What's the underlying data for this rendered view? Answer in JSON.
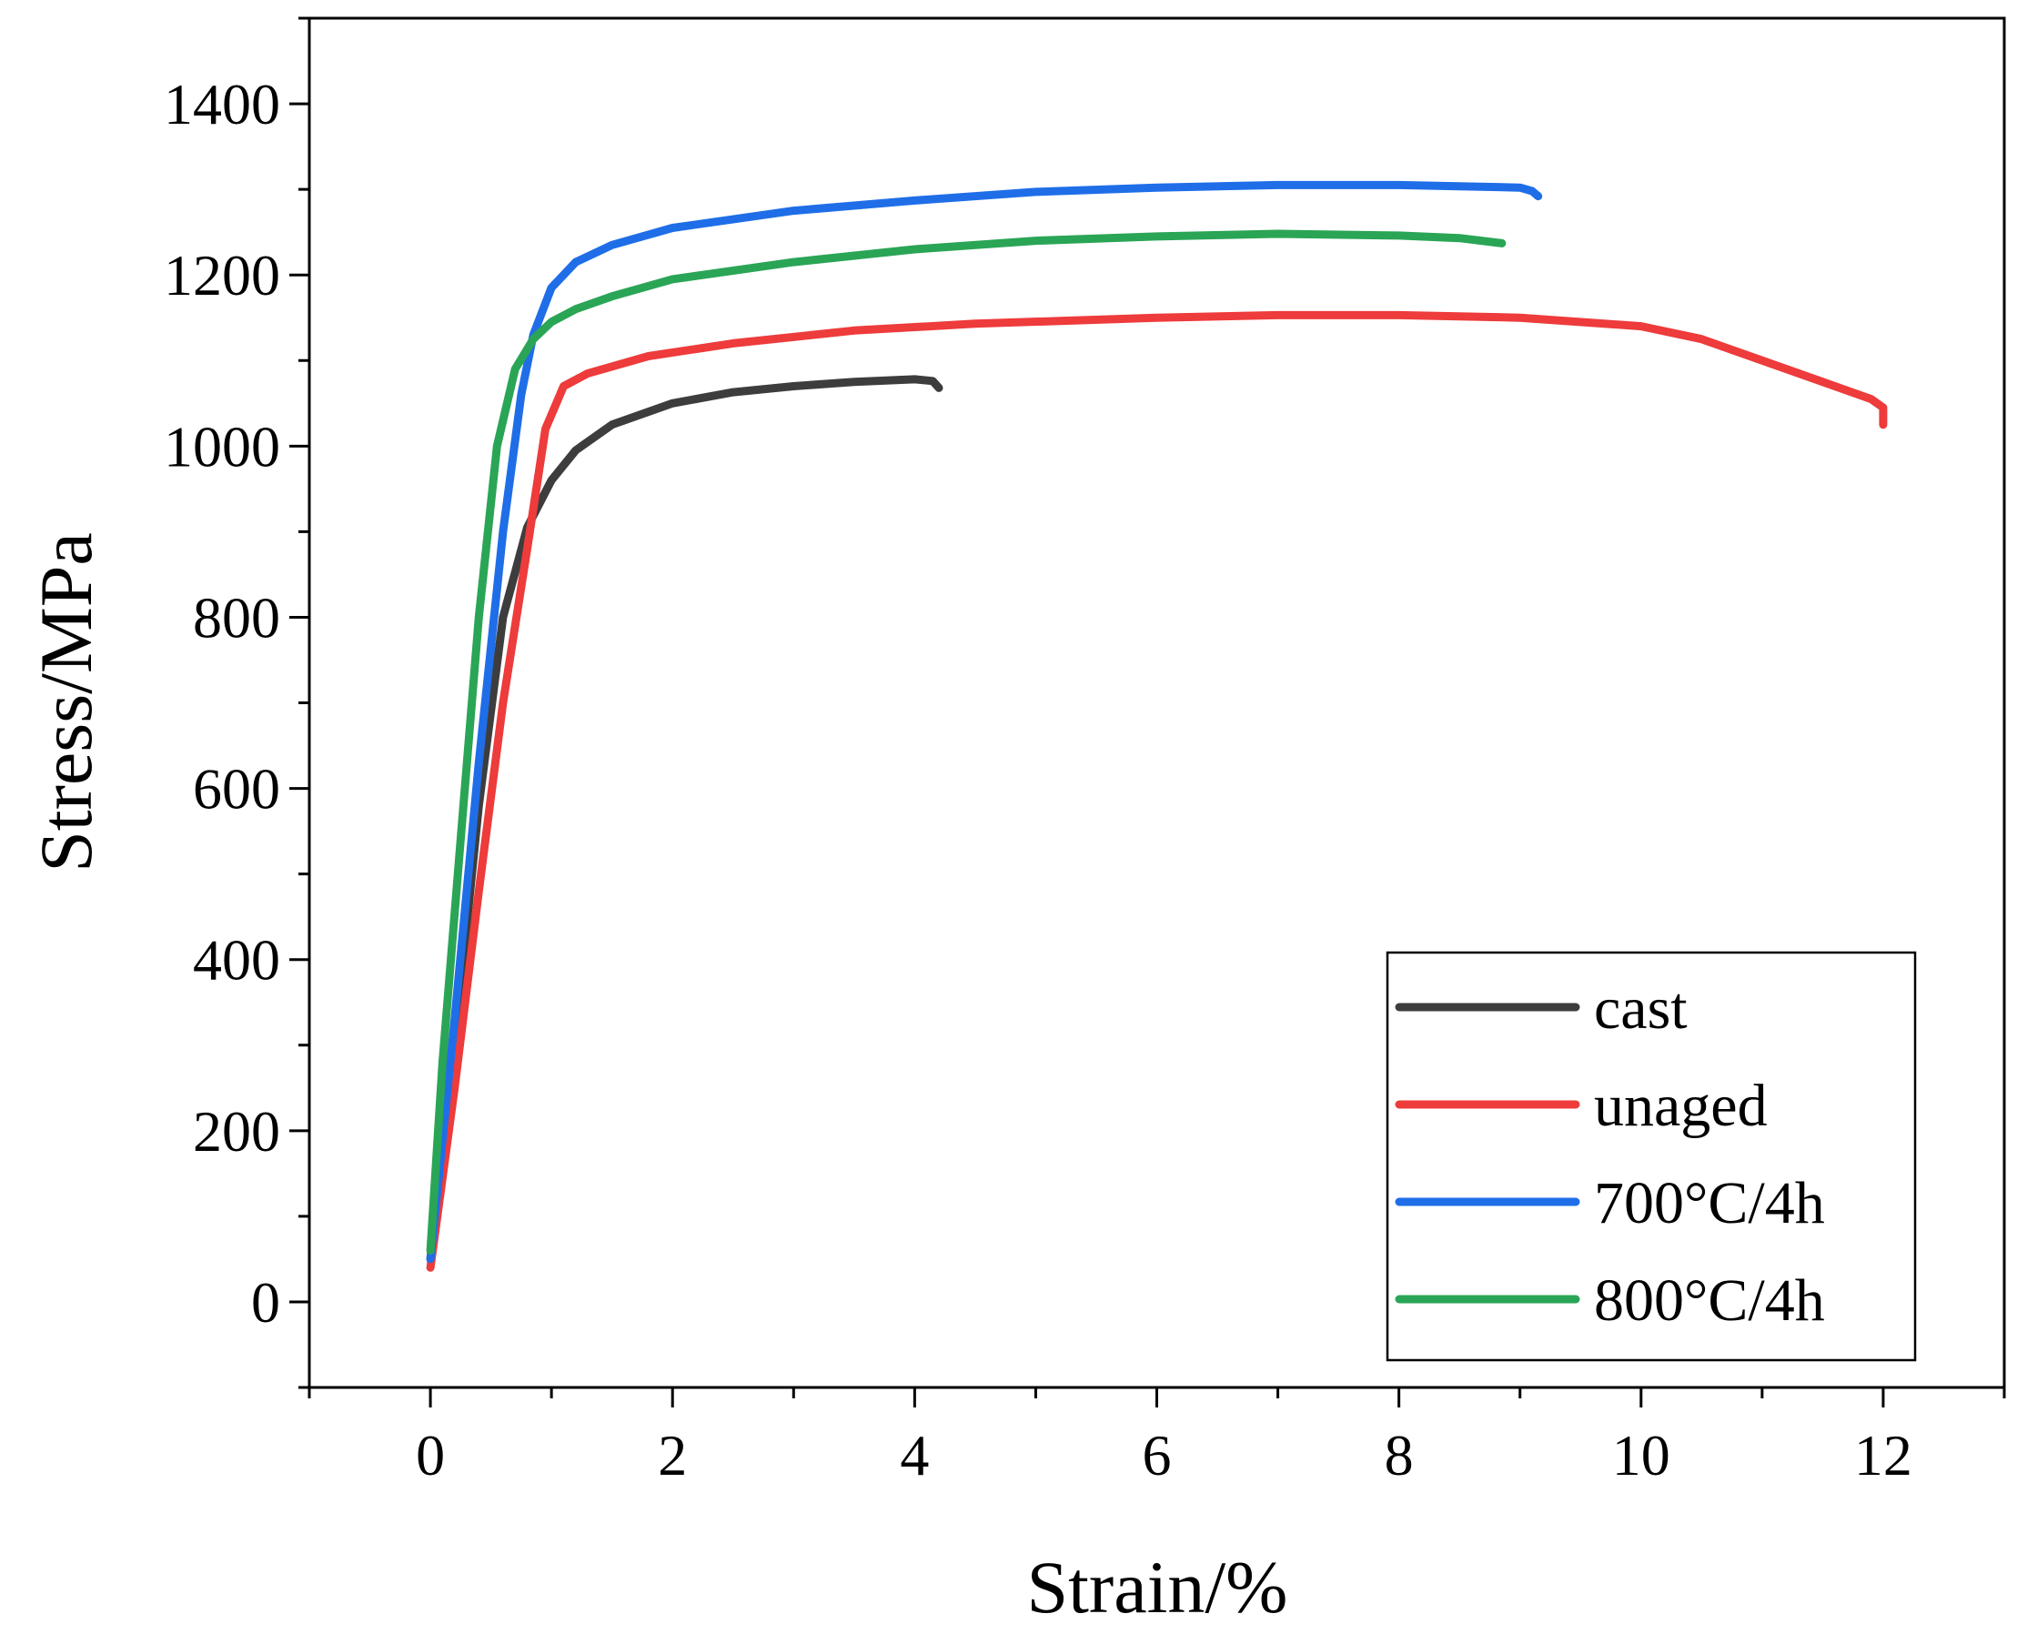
{
  "chart_data": {
    "type": "line",
    "title": "",
    "xlabel": "Strain/%",
    "ylabel": "Stress/MPa",
    "xlim": [
      -1,
      13
    ],
    "ylim": [
      -100,
      1500
    ],
    "x_ticks": [
      0,
      2,
      4,
      6,
      8,
      10,
      12
    ],
    "y_ticks": [
      0,
      200,
      400,
      600,
      800,
      1000,
      1200,
      1400
    ],
    "x_tick_labels": [
      "0",
      "2",
      "4",
      "6",
      "8",
      "10",
      "12"
    ],
    "y_tick_labels": [
      "0",
      "200",
      "400",
      "600",
      "800",
      "1000",
      "1200",
      "1400"
    ],
    "legend_position": "bottom-right",
    "grid": false,
    "series": [
      {
        "name": "cast",
        "color": "#3d3d3d",
        "points": [
          [
            0,
            50
          ],
          [
            0.2,
            300
          ],
          [
            0.4,
            580
          ],
          [
            0.6,
            800
          ],
          [
            0.8,
            905
          ],
          [
            1.0,
            960
          ],
          [
            1.2,
            995
          ],
          [
            1.5,
            1025
          ],
          [
            2.0,
            1050
          ],
          [
            2.5,
            1063
          ],
          [
            3.0,
            1070
          ],
          [
            3.5,
            1075
          ],
          [
            4.0,
            1078
          ],
          [
            4.15,
            1076
          ],
          [
            4.2,
            1068
          ]
        ]
      },
      {
        "name": "unaged",
        "color": "#ee3b3b",
        "points": [
          [
            0,
            40
          ],
          [
            0.2,
            250
          ],
          [
            0.4,
            480
          ],
          [
            0.6,
            700
          ],
          [
            0.8,
            880
          ],
          [
            0.95,
            1020
          ],
          [
            1.1,
            1070
          ],
          [
            1.3,
            1085
          ],
          [
            1.8,
            1105
          ],
          [
            2.5,
            1120
          ],
          [
            3.5,
            1135
          ],
          [
            4.5,
            1143
          ],
          [
            6.0,
            1150
          ],
          [
            7.0,
            1153
          ],
          [
            8.0,
            1153
          ],
          [
            9.0,
            1150
          ],
          [
            10.0,
            1140
          ],
          [
            10.5,
            1125
          ],
          [
            11.0,
            1100
          ],
          [
            11.5,
            1075
          ],
          [
            11.9,
            1055
          ],
          [
            12.0,
            1045
          ],
          [
            12.0,
            1025
          ]
        ]
      },
      {
        "name": "700°C/4h",
        "color": "#1f6ee8",
        "points": [
          [
            0,
            50
          ],
          [
            0.2,
            330
          ],
          [
            0.4,
            630
          ],
          [
            0.6,
            900
          ],
          [
            0.75,
            1060
          ],
          [
            0.85,
            1130
          ],
          [
            1.0,
            1185
          ],
          [
            1.2,
            1215
          ],
          [
            1.5,
            1235
          ],
          [
            2.0,
            1255
          ],
          [
            3.0,
            1275
          ],
          [
            4.0,
            1287
          ],
          [
            5.0,
            1297
          ],
          [
            6.0,
            1302
          ],
          [
            7.0,
            1305
          ],
          [
            8.0,
            1305
          ],
          [
            9.0,
            1302
          ],
          [
            9.1,
            1298
          ],
          [
            9.15,
            1292
          ]
        ]
      },
      {
        "name": "800°C/4h",
        "color": "#2aa556",
        "points": [
          [
            0,
            60
          ],
          [
            0.1,
            280
          ],
          [
            0.25,
            540
          ],
          [
            0.4,
            800
          ],
          [
            0.55,
            1000
          ],
          [
            0.7,
            1090
          ],
          [
            0.85,
            1125
          ],
          [
            1.0,
            1145
          ],
          [
            1.2,
            1160
          ],
          [
            1.5,
            1175
          ],
          [
            2.0,
            1195
          ],
          [
            3.0,
            1215
          ],
          [
            4.0,
            1230
          ],
          [
            5.0,
            1240
          ],
          [
            6.0,
            1245
          ],
          [
            7.0,
            1248
          ],
          [
            8.0,
            1246
          ],
          [
            8.5,
            1243
          ],
          [
            8.85,
            1237
          ]
        ]
      }
    ]
  }
}
